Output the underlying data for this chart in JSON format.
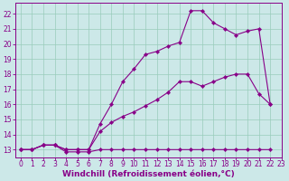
{
  "background_color": "#cce8e8",
  "line_color": "#880088",
  "grid_color": "#99ccbb",
  "xlabel": "Windchill (Refroidissement éolien,°C)",
  "xlabel_fontsize": 6.5,
  "tick_fontsize": 5.5,
  "xlim": [
    -0.5,
    23
  ],
  "ylim": [
    12.5,
    22.7
  ],
  "yticks": [
    13,
    14,
    15,
    16,
    17,
    18,
    19,
    20,
    21,
    22
  ],
  "xticks": [
    0,
    1,
    2,
    3,
    4,
    5,
    6,
    7,
    8,
    9,
    10,
    11,
    12,
    13,
    14,
    15,
    16,
    17,
    18,
    19,
    20,
    21,
    22,
    23
  ],
  "line1_x": [
    0,
    1,
    2,
    3,
    4,
    5,
    6,
    7,
    8,
    9,
    10,
    11,
    12,
    13,
    14,
    15,
    16,
    17,
    18,
    19,
    20,
    21,
    22
  ],
  "line1_y": [
    13,
    13,
    13.3,
    13.3,
    12.85,
    12.85,
    12.85,
    13,
    13,
    13,
    13,
    13,
    13,
    13,
    13,
    13,
    13,
    13,
    13,
    13,
    13,
    13,
    13
  ],
  "line2_x": [
    0,
    1,
    2,
    3,
    4,
    5,
    6,
    7,
    8,
    9,
    10,
    11,
    12,
    13,
    14,
    15,
    16,
    17,
    18,
    19,
    20,
    21,
    22
  ],
  "line2_y": [
    13,
    13,
    13.3,
    13.3,
    13,
    13,
    13,
    14.2,
    14.8,
    15.2,
    15.5,
    15.9,
    16.3,
    16.8,
    17.5,
    17.5,
    17.2,
    17.5,
    17.8,
    18.0,
    18.0,
    16.7,
    16.0
  ],
  "line3_x": [
    0,
    1,
    2,
    3,
    4,
    5,
    6,
    7,
    8,
    9,
    10,
    11,
    12,
    13,
    14,
    15,
    16,
    17,
    18,
    19,
    20,
    21,
    22
  ],
  "line3_y": [
    13,
    13,
    13.3,
    13.3,
    13,
    13,
    13,
    14.7,
    16.0,
    17.5,
    18.35,
    19.3,
    19.5,
    19.85,
    20.1,
    22.2,
    22.2,
    21.4,
    21.0,
    20.6,
    20.85,
    21.0,
    16.0
  ],
  "marker": "D",
  "markersize": 2.2,
  "linewidth": 0.8
}
